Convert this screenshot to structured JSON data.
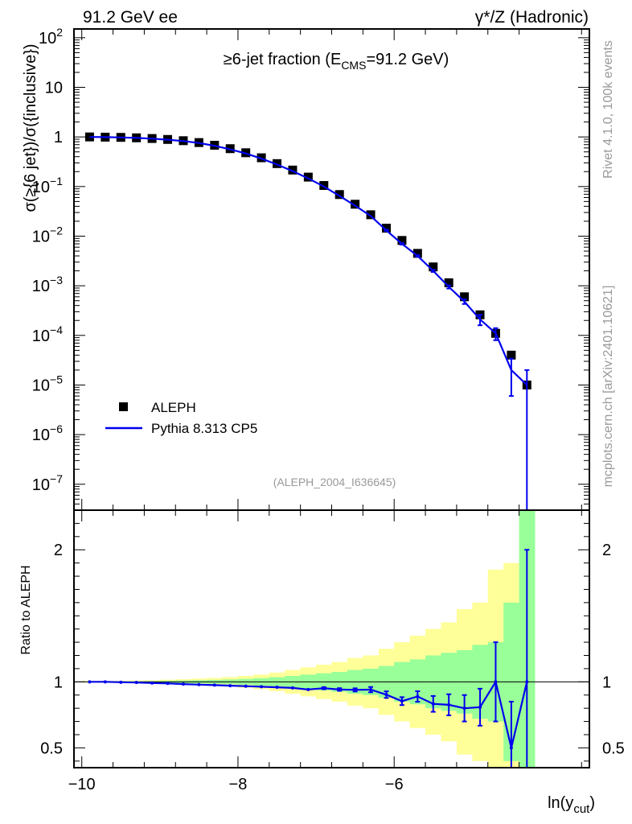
{
  "header": {
    "left": "91.2 GeV ee",
    "right": "γ*/Z (Hadronic)"
  },
  "side_text": {
    "rivet": "Rivet 4.1.0,  100k events",
    "mcplots": "mcplots.cern.ch [arXiv:2401.10621]"
  },
  "chart_data": {
    "type": "scatter",
    "title": "≥6-jet fraction (E_CMS=91.2 GeV)",
    "analysis_tag": "(ALEPH_2004_I636645)",
    "xlabel": "ln(y_cut)",
    "xlim": [
      -10.1,
      -3.5
    ],
    "x_ticks": [
      -10,
      -8,
      -6
    ],
    "x_tick_labels": [
      "−10",
      "−8",
      "−6"
    ],
    "main_panel": {
      "ylabel": "σ(≥{6 jet})/σ({inclusive})",
      "yscale": "log",
      "ylim": [
        3e-08,
        150
      ],
      "y_ticks": [
        {
          "value": 100,
          "base": "10",
          "exp": "2"
        },
        {
          "value": 10,
          "base": "10",
          "exp": ""
        },
        {
          "value": 1,
          "base": "1",
          "exp": ""
        },
        {
          "value": 0.1,
          "base": "10",
          "exp": "−1"
        },
        {
          "value": 0.01,
          "base": "10",
          "exp": "−2"
        },
        {
          "value": 0.001,
          "base": "10",
          "exp": "−3"
        },
        {
          "value": 0.0001,
          "base": "10",
          "exp": "−4"
        },
        {
          "value": 1e-05,
          "base": "10",
          "exp": "−5"
        },
        {
          "value": 1e-06,
          "base": "10",
          "exp": "−6"
        },
        {
          "value": 1e-07,
          "base": "10",
          "exp": "−7"
        }
      ]
    },
    "ratio_panel": {
      "ylabel": "Ratio to ALEPH",
      "ylim": [
        0.35,
        2.3
      ],
      "y_ticks": [
        0.5,
        1,
        2
      ],
      "y_tick_labels": [
        "0.5",
        "1",
        "2"
      ],
      "reference": 1
    },
    "legend": [
      {
        "label": "ALEPH",
        "marker": "square",
        "color": "#000000"
      },
      {
        "label": "Pythia 8.313 CP5",
        "marker": "line",
        "color": "#0000ee"
      }
    ],
    "legend_position": "bottom-left",
    "series": [
      {
        "name": "ALEPH",
        "color": "#000000",
        "x": [
          -9.9,
          -9.7,
          -9.5,
          -9.3,
          -9.1,
          -8.9,
          -8.7,
          -8.5,
          -8.3,
          -8.1,
          -7.9,
          -7.7,
          -7.5,
          -7.3,
          -7.1,
          -6.9,
          -6.7,
          -6.5,
          -6.3,
          -6.1,
          -5.9,
          -5.7,
          -5.5,
          -5.3,
          -5.1,
          -4.9,
          -4.7,
          -4.5,
          -4.3
        ],
        "values": [
          1.0,
          0.99,
          0.98,
          0.96,
          0.93,
          0.89,
          0.84,
          0.77,
          0.68,
          0.58,
          0.48,
          0.38,
          0.29,
          0.215,
          0.155,
          0.105,
          0.069,
          0.044,
          0.027,
          0.0145,
          0.0082,
          0.0045,
          0.0024,
          0.00115,
          0.0006,
          0.00026,
          0.00011,
          4e-05,
          1e-05
        ]
      },
      {
        "name": "Pythia 8.313 CP5",
        "color": "#0000ee",
        "x": [
          -9.9,
          -9.7,
          -9.5,
          -9.3,
          -9.1,
          -8.9,
          -8.7,
          -8.5,
          -8.3,
          -8.1,
          -7.9,
          -7.7,
          -7.5,
          -7.3,
          -7.1,
          -6.9,
          -6.7,
          -6.5,
          -6.3,
          -6.1,
          -5.9,
          -5.7,
          -5.5,
          -5.3,
          -5.1,
          -4.9,
          -4.7,
          -4.5,
          -4.3
        ],
        "values": [
          1.0,
          0.99,
          0.977,
          0.955,
          0.922,
          0.879,
          0.826,
          0.754,
          0.663,
          0.563,
          0.464,
          0.366,
          0.278,
          0.205,
          0.146,
          0.1,
          0.065,
          0.0413,
          0.0254,
          0.0131,
          0.007,
          0.004,
          0.002,
          0.00095,
          0.00048,
          0.00021,
          0.00011,
          2e-05,
          1e-05
        ],
        "err_low": [
          0,
          0,
          0,
          0,
          0,
          0,
          0,
          0,
          0,
          0,
          0,
          0,
          0,
          0,
          0,
          0,
          0,
          0,
          0,
          0.0004,
          0.00025,
          0.00015,
          0.0001,
          7e-05,
          5e-05,
          5e-05,
          3e-05,
          1.4e-05,
          1e-05
        ],
        "err_high": [
          0,
          0,
          0,
          0,
          0,
          0,
          0,
          0,
          0,
          0,
          0,
          0,
          0,
          0,
          0,
          0,
          0,
          0,
          0,
          0.0004,
          0.00025,
          0.00015,
          0.0001,
          7e-05,
          5e-05,
          5e-05,
          3e-05,
          1.4e-05,
          1e-05
        ],
        "ratio": [
          1.0,
          1.0,
          0.997,
          0.995,
          0.991,
          0.988,
          0.983,
          0.979,
          0.975,
          0.971,
          0.967,
          0.963,
          0.959,
          0.954,
          0.942,
          0.952,
          0.942,
          0.939,
          0.941,
          0.903,
          0.854,
          0.889,
          0.833,
          0.826,
          0.8,
          0.808,
          1.0,
          0.5,
          1.0
        ],
        "ratio_err": [
          0,
          0,
          0,
          0,
          0,
          0,
          0,
          0,
          0,
          0,
          0,
          0,
          0,
          0,
          0,
          0.008,
          0.01,
          0.012,
          0.02,
          0.025,
          0.03,
          0.04,
          0.06,
          0.08,
          0.1,
          0.14,
          0.3,
          0.35,
          1.0
        ]
      }
    ],
    "uncertainty_bands": [
      {
        "name": "1-sigma",
        "color": "#99ff99",
        "half_width": [
          0.003,
          0.003,
          0.004,
          0.005,
          0.006,
          0.008,
          0.01,
          0.012,
          0.015,
          0.018,
          0.022,
          0.028,
          0.035,
          0.045,
          0.055,
          0.065,
          0.075,
          0.09,
          0.1,
          0.12,
          0.15,
          0.17,
          0.2,
          0.22,
          0.24,
          0.28,
          0.3,
          0.6,
          1.3
        ]
      },
      {
        "name": "2-sigma",
        "color": "#ffff99",
        "half_width": [
          0.006,
          0.007,
          0.008,
          0.01,
          0.012,
          0.016,
          0.02,
          0.025,
          0.03,
          0.036,
          0.045,
          0.055,
          0.07,
          0.09,
          0.11,
          0.13,
          0.15,
          0.18,
          0.2,
          0.25,
          0.3,
          0.35,
          0.4,
          0.45,
          0.55,
          0.6,
          0.85,
          0.9,
          1.3
        ]
      }
    ]
  }
}
